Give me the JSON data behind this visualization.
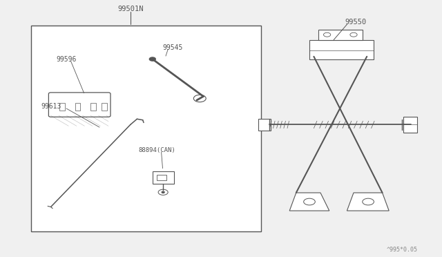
{
  "bg_color": "#f0f0f0",
  "line_color": "#555555",
  "text_color": "#555555",
  "watermark": "^995*0.05",
  "fig_width": 6.4,
  "fig_height": 3.72,
  "dpi": 100
}
